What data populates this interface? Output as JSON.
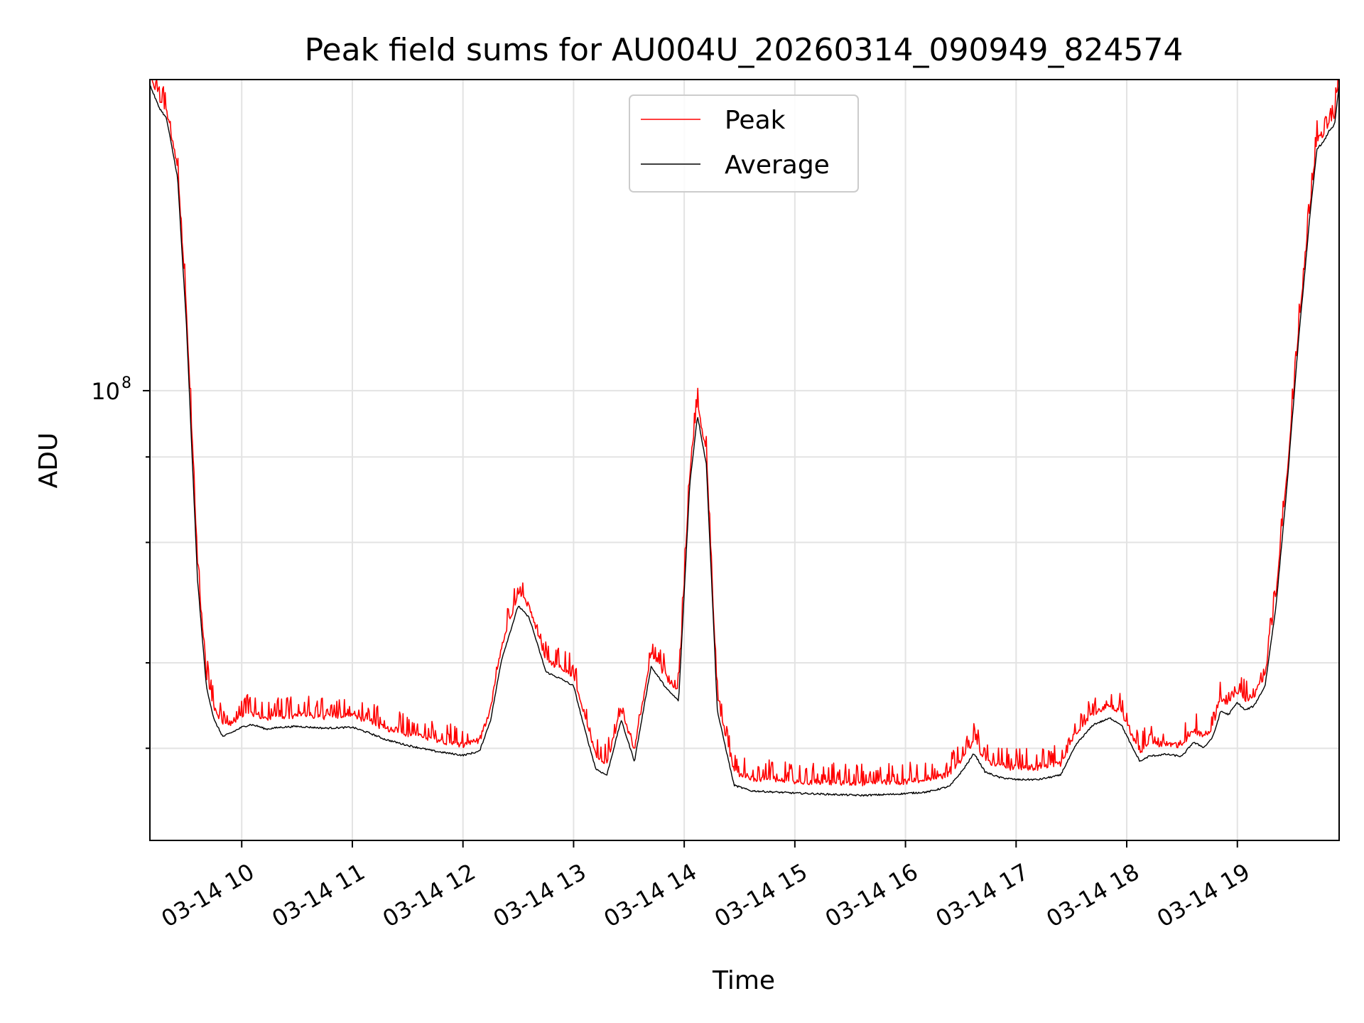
{
  "chart_data": {
    "type": "line",
    "title": "Peak field sums for AU004U_20260314_090949_824574",
    "xlabel": "Time",
    "ylabel": "ADU",
    "yscale": "log",
    "ylim": [
      22000000,
      285000000
    ],
    "xlim": [
      9.17,
      19.92
    ],
    "x_unit": "hour of 2026-03-14",
    "xticks": [
      {
        "value": 10,
        "label": "03-14 10"
      },
      {
        "value": 11,
        "label": "03-14 11"
      },
      {
        "value": 12,
        "label": "03-14 12"
      },
      {
        "value": 13,
        "label": "03-14 13"
      },
      {
        "value": 14,
        "label": "03-14 14"
      },
      {
        "value": 15,
        "label": "03-14 15"
      },
      {
        "value": 16,
        "label": "03-14 16"
      },
      {
        "value": 17,
        "label": "03-14 17"
      },
      {
        "value": 18,
        "label": "03-14 18"
      },
      {
        "value": 19,
        "label": "03-14 19"
      }
    ],
    "yticks_major": [
      {
        "value": 100000000,
        "base": "10",
        "exp": "8"
      }
    ],
    "yticks_minor": [
      30000000,
      40000000,
      60000000,
      80000000
    ],
    "grid": true,
    "legend_position": "top-center",
    "series": [
      {
        "name": "Peak",
        "color": "#ff0000",
        "noise_amplitude": 0.05,
        "x": [
          9.17,
          9.25,
          9.32,
          9.42,
          9.5,
          9.6,
          9.68,
          9.75,
          9.83,
          9.92,
          10.0,
          10.08,
          10.15,
          10.22,
          10.35,
          10.5,
          10.75,
          11.0,
          11.15,
          11.3,
          11.5,
          11.75,
          12.0,
          12.15,
          12.25,
          12.35,
          12.5,
          12.6,
          12.75,
          12.9,
          13.0,
          13.1,
          13.2,
          13.3,
          13.43,
          13.55,
          13.7,
          13.85,
          13.95,
          14.05,
          14.12,
          14.2,
          14.3,
          14.45,
          14.6,
          14.8,
          15.0,
          15.3,
          15.6,
          15.9,
          16.2,
          16.4,
          16.52,
          16.62,
          16.72,
          16.85,
          17.0,
          17.2,
          17.4,
          17.55,
          17.7,
          17.85,
          17.95,
          18.05,
          18.12,
          18.2,
          18.35,
          18.5,
          18.6,
          18.7,
          18.78,
          18.85,
          18.92,
          19.0,
          19.07,
          19.15,
          19.25,
          19.35,
          19.45,
          19.55,
          19.65,
          19.72,
          19.78,
          19.83,
          19.88,
          19.92
        ],
        "y": [
          285000000,
          265000000,
          255000000,
          210000000,
          130000000,
          55000000,
          38000000,
          34000000,
          32000000,
          32500000,
          33000000,
          33500000,
          33200000,
          32800000,
          33000000,
          33200000,
          33000000,
          33100000,
          32500000,
          31800000,
          31200000,
          30500000,
          30000000,
          30500000,
          34000000,
          42000000,
          50000000,
          48000000,
          40000000,
          38800000,
          38000000,
          33000000,
          29000000,
          28200000,
          34000000,
          29500000,
          41000000,
          37500000,
          36000000,
          75000000,
          95000000,
          80000000,
          35000000,
          27500000,
          26800000,
          26800000,
          26500000,
          26500000,
          26400000,
          26500000,
          26700000,
          27200000,
          28800000,
          30500000,
          28500000,
          28000000,
          27800000,
          27800000,
          28200000,
          31500000,
          33500000,
          34200000,
          33500000,
          31000000,
          29500000,
          30000000,
          30200000,
          30000000,
          31500000,
          31000000,
          32000000,
          35000000,
          34500000,
          36000000,
          35000000,
          35500000,
          38000000,
          50000000,
          75000000,
          120000000,
          180000000,
          230000000,
          235000000,
          245000000,
          250000000,
          285000000
        ]
      },
      {
        "name": "Average",
        "color": "#000000",
        "noise_amplitude": 0.0,
        "x": [
          9.17,
          9.25,
          9.32,
          9.42,
          9.5,
          9.6,
          9.68,
          9.75,
          9.83,
          9.92,
          10.0,
          10.08,
          10.15,
          10.22,
          10.35,
          10.5,
          10.75,
          11.0,
          11.15,
          11.3,
          11.5,
          11.75,
          12.0,
          12.15,
          12.25,
          12.35,
          12.5,
          12.6,
          12.75,
          12.9,
          13.0,
          13.1,
          13.2,
          13.3,
          13.43,
          13.55,
          13.7,
          13.85,
          13.95,
          14.05,
          14.12,
          14.2,
          14.3,
          14.45,
          14.6,
          14.8,
          15.0,
          15.3,
          15.6,
          15.9,
          16.2,
          16.4,
          16.52,
          16.62,
          16.72,
          16.85,
          17.0,
          17.2,
          17.4,
          17.55,
          17.7,
          17.85,
          17.95,
          18.05,
          18.12,
          18.2,
          18.35,
          18.5,
          18.6,
          18.7,
          18.78,
          18.85,
          18.92,
          19.0,
          19.07,
          19.15,
          19.25,
          19.35,
          19.45,
          19.55,
          19.65,
          19.72,
          19.78,
          19.83,
          19.88,
          19.92
        ],
        "y": [
          280000000,
          260000000,
          250000000,
          205000000,
          125000000,
          53000000,
          37000000,
          33000000,
          31200000,
          31700000,
          32200000,
          32500000,
          32300000,
          32000000,
          32200000,
          32300000,
          32100000,
          32200000,
          31600000,
          30900000,
          30300000,
          29700000,
          29300000,
          29700000,
          33000000,
          40500000,
          48500000,
          46500000,
          38800000,
          37800000,
          37000000,
          32000000,
          28000000,
          27400000,
          33000000,
          28700000,
          39500000,
          36500000,
          35200000,
          73000000,
          92000000,
          78000000,
          34000000,
          26500000,
          26000000,
          25900000,
          25800000,
          25700000,
          25600000,
          25700000,
          25900000,
          26400000,
          27900000,
          29500000,
          27700000,
          27200000,
          27000000,
          27000000,
          27400000,
          30500000,
          32500000,
          33200000,
          32500000,
          30100000,
          28700000,
          29200000,
          29400000,
          29200000,
          30600000,
          30100000,
          31200000,
          34000000,
          33600000,
          35000000,
          34100000,
          34600000,
          37000000,
          48500000,
          73000000,
          117000000,
          176000000,
          226000000,
          231000000,
          240000000,
          245000000,
          280000000
        ]
      }
    ]
  }
}
